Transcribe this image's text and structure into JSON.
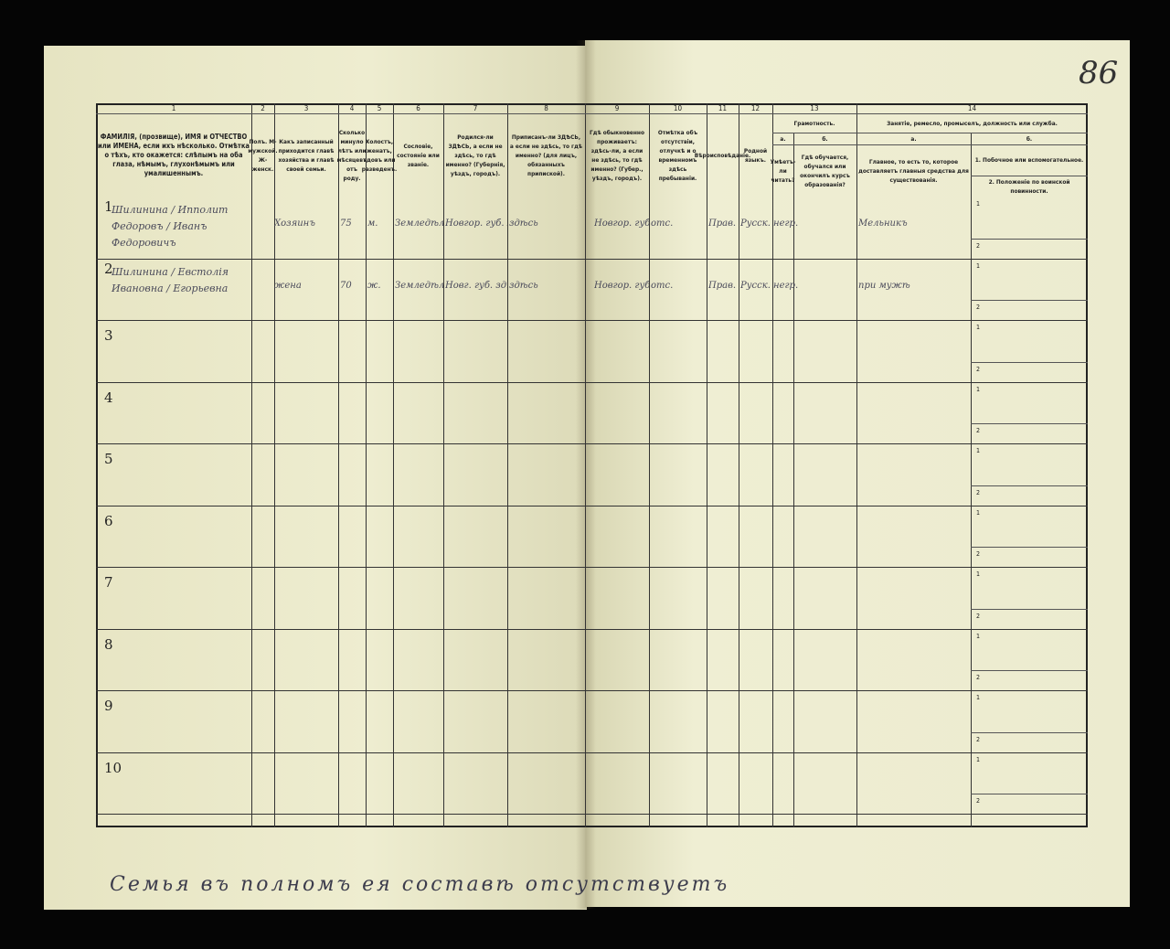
{
  "page_number": "86",
  "column_numbers": [
    "1",
    "2",
    "3",
    "4",
    "5",
    "6",
    "7",
    "8",
    "9",
    "10",
    "11",
    "12",
    "13",
    "14"
  ],
  "headers": {
    "c1": "ФАМИЛІЯ, (прозвище), ИМЯ и ОТЧЕСТВО или ИМЕНА, если ихъ нѣсколько. Отмѣтка о тѣхъ, кто окажется: слѣпымъ на оба глаза, нѣмымъ, глухонѣмымъ или умалишеннымъ.",
    "c2": "Полъ. М-мужской. Ж-женск.",
    "c3": "Какъ записанный приходится главѣ хозяйства и главѣ своей семьи.",
    "c4": "Сколько минуло лѣтъ или мѣсяцевъ отъ роду.",
    "c5": "Холостъ, женатъ, вдовъ или разведенъ.",
    "c6": "Сословіе, состояніе или званіе.",
    "c7": "Родился-ли ЗДѢСЬ, а если не здѣсь, то гдѣ именно? (Губернія, уѣздъ, городъ).",
    "c8": "Приписанъ-ли ЗДѢСЬ, а если не здѣсь, то гдѣ именно? (для лицъ, обязанныхъ припиской).",
    "c9": "Гдѣ обыкновенно проживаетъ: здѣсь-ли, а если не здѣсь, то гдѣ именно? (Губер., уѣздъ, городъ).",
    "c10": "Отмѣтка объ отсутствіи, отлучкѣ и о временномъ здѣсь пребываніи.",
    "c11": "Вѣроисповѣданіе.",
    "c12": "Родной языкъ.",
    "c13": "Грамотность.",
    "c13a_label": "а.",
    "c13a": "Умѣетъ-ли читать?",
    "c13b_label": "б.",
    "c13b": "Гдѣ обучается, обучался или окончилъ курсъ образованія?",
    "c14": "Занятіе, ремесло, промыселъ, должность или служба.",
    "c14a_label": "а.",
    "c14a": "Главное, то есть то, которое доставляетъ главныя средства для существованія.",
    "c14b_label": "б.",
    "c14b1": "1. Побочное или вспомогательное.",
    "c14b2": "2. Положеніе по воинской повинности."
  },
  "rows": [
    {
      "n": "1",
      "name": "Шилинина / Ипполит Федоровъ / Иванъ Федоровичъ",
      "relation": "Хозяинъ",
      "age": "75",
      "sex": "м.",
      "estate": "Земледѣл.",
      "born": "Новгор. губ. Новорж. у.",
      "registered": "здѣсь",
      "resides": "Новгор. губ. Новорж. у.",
      "absence": "отс.",
      "religion": "Прав.",
      "language": "Русск.",
      "literacy": "негр.",
      "occupation": "Мельникъ"
    },
    {
      "n": "2",
      "name": "Шилинина / Евстолія Ивановна / Егорьевна",
      "relation": "жена",
      "age": "70",
      "sex": "ж.",
      "estate": "Земледѣл.",
      "born": "Новг. губ. здѣсь",
      "registered": "здѣсь",
      "resides": "Новгор. губ. Новорж. у.",
      "absence": "отс.",
      "religion": "Прав.",
      "language": "Русск.",
      "literacy": "негр.",
      "occupation": "при мужѣ"
    },
    {
      "n": "3"
    },
    {
      "n": "4"
    },
    {
      "n": "5"
    },
    {
      "n": "6"
    },
    {
      "n": "7"
    },
    {
      "n": "8"
    },
    {
      "n": "9"
    },
    {
      "n": "10"
    }
  ],
  "sub_labels": [
    "1",
    "2"
  ],
  "footer_note": "Семья въ полномъ ея составѣ отсутствуетъ"
}
